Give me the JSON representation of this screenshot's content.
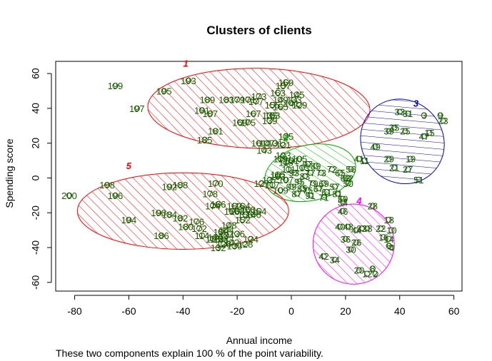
{
  "chart_data": {
    "type": "scatter",
    "title": "Clusters of clients",
    "xlabel": "Annual income",
    "ylabel": "Spending score",
    "note": "These two components explain 100 % of the point variability.",
    "xlim": [
      -87,
      63
    ],
    "ylim": [
      -65,
      67
    ],
    "xticks": [
      -80,
      -60,
      -40,
      -20,
      0,
      20,
      40,
      60
    ],
    "yticks": [
      -60,
      -40,
      -20,
      0,
      20,
      40,
      60
    ],
    "grid": false,
    "clusters": [
      {
        "label": "1",
        "color": "#ff0000",
        "fill_color": "#ff0000",
        "center": [
          -12,
          40
        ],
        "rx": 41,
        "ry": 23,
        "angle": 1,
        "label_pos": [
          -39,
          64
        ]
      },
      {
        "label": "2",
        "color": "#00aa00",
        "fill_color": "#00bb00",
        "center": [
          7,
          3
        ],
        "rx": 17,
        "ry": 16,
        "angle": -12,
        "label_pos": [
          -2,
          21
        ]
      },
      {
        "label": "3",
        "color": "#0000cc",
        "fill_color": "#0000cc",
        "center": [
          41,
          21
        ],
        "rx": 15,
        "ry": 25,
        "angle": -40,
        "label_pos": [
          46,
          41
        ]
      },
      {
        "label": "4",
        "color": "#ff00ff",
        "fill_color": "#ff00ff",
        "center": [
          23,
          -38
        ],
        "rx": 15,
        "ry": 23,
        "angle": 0,
        "label_pos": [
          25,
          -15
        ]
      },
      {
        "label": "5",
        "color": "#ff0000",
        "fill_color": "#ff0000",
        "center": [
          -40,
          -19
        ],
        "rx": 39,
        "ry": 22,
        "angle": 0,
        "label_pos": [
          -60,
          5
        ]
      }
    ],
    "points": [
      {
        "label": "199",
        "x": -65,
        "y": 53
      },
      {
        "label": "195",
        "x": -47,
        "y": 50
      },
      {
        "label": "193",
        "x": -38,
        "y": 56
      },
      {
        "label": "197",
        "x": -57,
        "y": 40
      },
      {
        "label": "189",
        "x": -31,
        "y": 45
      },
      {
        "label": "187",
        "x": -30,
        "y": 37
      },
      {
        "label": "191",
        "x": -33,
        "y": 39
      },
      {
        "label": "183",
        "x": -24,
        "y": 45
      },
      {
        "label": "179",
        "x": -20,
        "y": 45
      },
      {
        "label": "171",
        "x": -16,
        "y": 45
      },
      {
        "label": "177",
        "x": -13,
        "y": 44
      },
      {
        "label": "173",
        "x": -12,
        "y": 47
      },
      {
        "label": "167",
        "x": -14,
        "y": 37
      },
      {
        "label": "163",
        "x": -5,
        "y": 49
      },
      {
        "label": "159",
        "x": -2,
        "y": 55
      },
      {
        "label": "157",
        "x": -3,
        "y": 53
      },
      {
        "label": "165",
        "x": -4,
        "y": 41
      },
      {
        "label": "145",
        "x": 2,
        "y": 48
      },
      {
        "label": "155",
        "x": -7,
        "y": 42
      },
      {
        "label": "133",
        "x": 1,
        "y": 45
      },
      {
        "label": "149",
        "x": -4,
        "y": 45
      },
      {
        "label": "141",
        "x": 0,
        "y": 43
      },
      {
        "label": "129",
        "x": 3,
        "y": 42
      },
      {
        "label": "153",
        "x": -7,
        "y": 36
      },
      {
        "label": "181",
        "x": -28,
        "y": 27
      },
      {
        "label": "185",
        "x": -32,
        "y": 22
      },
      {
        "label": "169",
        "x": -19,
        "y": 32
      },
      {
        "label": "175",
        "x": -16,
        "y": 32
      },
      {
        "label": "135",
        "x": -8,
        "y": 36
      },
      {
        "label": "139",
        "x": -8,
        "y": 33
      },
      {
        "label": "161",
        "x": -12,
        "y": 20
      },
      {
        "label": "143",
        "x": -10,
        "y": 16
      },
      {
        "label": "147",
        "x": -9,
        "y": 20
      },
      {
        "label": "131",
        "x": -6,
        "y": 20
      },
      {
        "label": "121",
        "x": -3,
        "y": 19
      },
      {
        "label": "125",
        "x": -2,
        "y": 24
      },
      {
        "label": "123",
        "x": -3,
        "y": 13
      },
      {
        "label": "118",
        "x": -2,
        "y": 9
      },
      {
        "label": "101",
        "x": 0,
        "y": 10
      },
      {
        "label": "105",
        "x": 3,
        "y": 11
      },
      {
        "label": "111",
        "x": -1,
        "y": 5
      },
      {
        "label": "113",
        "x": 4,
        "y": 6
      },
      {
        "label": "97",
        "x": 6,
        "y": 8
      },
      {
        "label": "89",
        "x": 9,
        "y": 7
      },
      {
        "label": "93",
        "x": 1,
        "y": 3
      },
      {
        "label": "83",
        "x": 5,
        "y": 1
      },
      {
        "label": "115",
        "x": -5,
        "y": 2
      },
      {
        "label": "107",
        "x": -2,
        "y": -1
      },
      {
        "label": "95",
        "x": 3,
        "y": -2
      },
      {
        "label": "77",
        "x": 7,
        "y": 3
      },
      {
        "label": "73",
        "x": 11,
        "y": 3
      },
      {
        "label": "72",
        "x": 15,
        "y": 5
      },
      {
        "label": "65",
        "x": 18,
        "y": 3
      },
      {
        "label": "56",
        "x": 22,
        "y": 5
      },
      {
        "label": "63",
        "x": 20,
        "y": 0
      },
      {
        "label": "79",
        "x": 8,
        "y": -3
      },
      {
        "label": "69",
        "x": 12,
        "y": -3
      },
      {
        "label": "85",
        "x": 4,
        "y": -6
      },
      {
        "label": "99",
        "x": 0,
        "y": -5
      },
      {
        "label": "57",
        "x": 16,
        "y": -5
      },
      {
        "label": "61",
        "x": 13,
        "y": -8
      },
      {
        "label": "67",
        "x": 10,
        "y": -6
      },
      {
        "label": "75",
        "x": 6,
        "y": -7
      },
      {
        "label": "81",
        "x": 17,
        "y": -9
      },
      {
        "label": "127",
        "x": -11,
        "y": -3
      },
      {
        "label": "117",
        "x": -7,
        "y": -4
      },
      {
        "label": "109",
        "x": -4,
        "y": -7
      },
      {
        "label": "87",
        "x": 2,
        "y": -9
      },
      {
        "label": "91",
        "x": 7,
        "y": -10
      },
      {
        "label": "71",
        "x": 12,
        "y": -11
      },
      {
        "label": "59",
        "x": 19,
        "y": -12
      },
      {
        "label": "54",
        "x": 19,
        "y": -14
      },
      {
        "label": "46",
        "x": 19,
        "y": -19
      },
      {
        "label": "52",
        "x": 21,
        "y": 0
      },
      {
        "label": "50",
        "x": 21,
        "y": -3
      },
      {
        "label": "103",
        "x": -5,
        "y": 1
      },
      {
        "label": "119",
        "x": -4,
        "y": 11
      },
      {
        "label": "137",
        "x": -8,
        "y": -1
      },
      {
        "label": "33",
        "x": 40,
        "y": 38
      },
      {
        "label": "31",
        "x": 43,
        "y": 37
      },
      {
        "label": "3",
        "x": 49,
        "y": 36
      },
      {
        "label": "9",
        "x": 55,
        "y": 36
      },
      {
        "label": "23",
        "x": 56,
        "y": 33
      },
      {
        "label": "39",
        "x": 36,
        "y": 27
      },
      {
        "label": "35",
        "x": 38,
        "y": 29
      },
      {
        "label": "25",
        "x": 42,
        "y": 27
      },
      {
        "label": "15",
        "x": 51,
        "y": 26
      },
      {
        "label": "47",
        "x": 49,
        "y": 24
      },
      {
        "label": "49",
        "x": 31,
        "y": 18
      },
      {
        "label": "19",
        "x": 44,
        "y": 11
      },
      {
        "label": "29",
        "x": 36,
        "y": 11
      },
      {
        "label": "21",
        "x": 38,
        "y": 6
      },
      {
        "label": "27",
        "x": 43,
        "y": 5
      },
      {
        "label": "41",
        "x": 25,
        "y": 11
      },
      {
        "label": "11",
        "x": 27,
        "y": 10
      },
      {
        "label": "51",
        "x": 47,
        "y": -1
      },
      {
        "label": "28",
        "x": 30,
        "y": -16
      },
      {
        "label": "18",
        "x": 36,
        "y": -24
      },
      {
        "label": "40",
        "x": 18,
        "y": -28
      },
      {
        "label": "48",
        "x": 21,
        "y": -28
      },
      {
        "label": "32",
        "x": 26,
        "y": -29
      },
      {
        "label": "22",
        "x": 33,
        "y": -29
      },
      {
        "label": "10",
        "x": 37,
        "y": -30
      },
      {
        "label": "16",
        "x": 34,
        "y": -34
      },
      {
        "label": "14",
        "x": 36,
        "y": -35
      },
      {
        "label": "36",
        "x": 20,
        "y": -35
      },
      {
        "label": "26",
        "x": 24,
        "y": -37
      },
      {
        "label": "6",
        "x": 36,
        "y": -39
      },
      {
        "label": "30",
        "x": 22,
        "y": -41
      },
      {
        "label": "42",
        "x": 12,
        "y": -45
      },
      {
        "label": "34",
        "x": 16,
        "y": -47
      },
      {
        "label": "20",
        "x": 25,
        "y": -53
      },
      {
        "label": "12",
        "x": 28,
        "y": -55
      },
      {
        "label": "8",
        "x": 30,
        "y": -52
      },
      {
        "label": "2",
        "x": 31,
        "y": -55
      },
      {
        "label": "4",
        "x": 37,
        "y": -40
      },
      {
        "label": "38",
        "x": 28,
        "y": -29
      },
      {
        "label": "44",
        "x": 24,
        "y": -30
      },
      {
        "label": "200",
        "x": -82,
        "y": -10
      },
      {
        "label": "198",
        "x": -68,
        "y": -4
      },
      {
        "label": "196",
        "x": -65,
        "y": -10
      },
      {
        "label": "192",
        "x": -45,
        "y": -5
      },
      {
        "label": "188",
        "x": -41,
        "y": -4
      },
      {
        "label": "170",
        "x": -28,
        "y": -3
      },
      {
        "label": "178",
        "x": -30,
        "y": -9
      },
      {
        "label": "194",
        "x": -60,
        "y": -24
      },
      {
        "label": "190",
        "x": -49,
        "y": -20
      },
      {
        "label": "184",
        "x": -45,
        "y": -21
      },
      {
        "label": "182",
        "x": -41,
        "y": -23
      },
      {
        "label": "176",
        "x": -35,
        "y": -25
      },
      {
        "label": "186",
        "x": -48,
        "y": -33
      },
      {
        "label": "180",
        "x": -39,
        "y": -28
      },
      {
        "label": "172",
        "x": -34,
        "y": -29
      },
      {
        "label": "174",
        "x": -29,
        "y": -16
      },
      {
        "label": "166",
        "x": -27,
        "y": -15
      },
      {
        "label": "162",
        "x": -21,
        "y": -16
      },
      {
        "label": "164",
        "x": -18,
        "y": -16
      },
      {
        "label": "160",
        "x": -16,
        "y": -18
      },
      {
        "label": "168",
        "x": -20,
        "y": -19
      },
      {
        "label": "156",
        "x": -17,
        "y": -21
      },
      {
        "label": "158",
        "x": -22,
        "y": -19
      },
      {
        "label": "146",
        "x": -14,
        "y": -21
      },
      {
        "label": "154",
        "x": -12,
        "y": -19
      },
      {
        "label": "152",
        "x": -18,
        "y": -24
      },
      {
        "label": "148",
        "x": -23,
        "y": -27
      },
      {
        "label": "144",
        "x": -24,
        "y": -30
      },
      {
        "label": "136",
        "x": -20,
        "y": -32
      },
      {
        "label": "134",
        "x": -24,
        "y": -33
      },
      {
        "label": "150",
        "x": -26,
        "y": -31
      },
      {
        "label": "140",
        "x": -28,
        "y": -34
      },
      {
        "label": "142",
        "x": -22,
        "y": -37
      },
      {
        "label": "124",
        "x": -15,
        "y": -35
      },
      {
        "label": "130",
        "x": -21,
        "y": -39
      },
      {
        "label": "128",
        "x": -17,
        "y": -38
      },
      {
        "label": "126",
        "x": -25,
        "y": -38
      },
      {
        "label": "138",
        "x": -26,
        "y": -35
      },
      {
        "label": "132",
        "x": -27,
        "y": -40
      },
      {
        "label": "116",
        "x": -29,
        "y": -35
      },
      {
        "label": "114",
        "x": -33,
        "y": -33
      }
    ]
  }
}
